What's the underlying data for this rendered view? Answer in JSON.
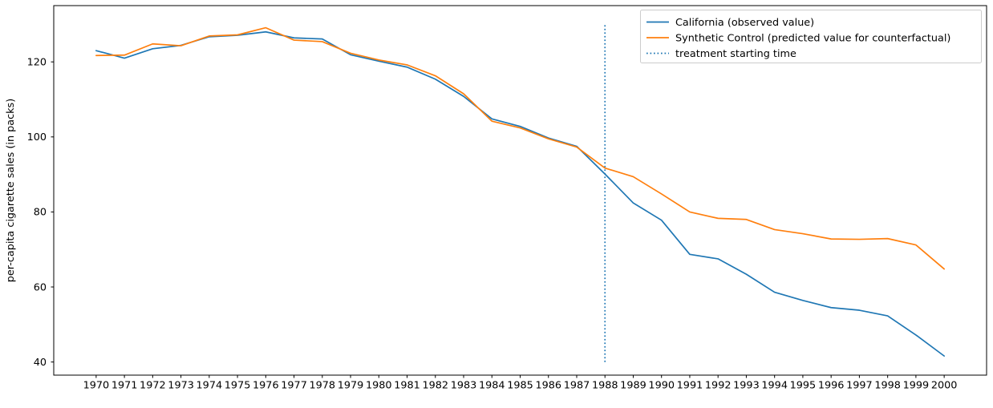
{
  "chart_data": {
    "type": "line",
    "title": "",
    "xlabel": "",
    "ylabel": "per-capita cigarette sales (in packs)",
    "grid": false,
    "legend_position": "upper right",
    "xlim": [
      1968.5,
      2001.5
    ],
    "ylim": [
      36.5,
      135
    ],
    "xticks": [
      1970,
      1971,
      1972,
      1973,
      1974,
      1975,
      1976,
      1977,
      1978,
      1979,
      1980,
      1981,
      1982,
      1983,
      1984,
      1985,
      1986,
      1987,
      1988,
      1989,
      1990,
      1991,
      1992,
      1993,
      1994,
      1995,
      1996,
      1997,
      1998,
      1999,
      2000
    ],
    "yticks": [
      40,
      60,
      80,
      100,
      120
    ],
    "x": [
      1970,
      1971,
      1972,
      1973,
      1974,
      1975,
      1976,
      1977,
      1978,
      1979,
      1980,
      1981,
      1982,
      1983,
      1984,
      1985,
      1986,
      1987,
      1988,
      1989,
      1990,
      1991,
      1992,
      1993,
      1994,
      1995,
      1996,
      1997,
      1998,
      1999,
      2000
    ],
    "series": [
      {
        "name": "California (observed value)",
        "color": "#1f77b4",
        "style": "solid",
        "values": [
          123.0,
          121.0,
          123.5,
          124.4,
          126.7,
          127.1,
          128.0,
          126.4,
          126.1,
          121.9,
          120.2,
          118.6,
          115.4,
          110.8,
          104.8,
          102.8,
          99.7,
          97.5,
          90.1,
          82.4,
          77.8,
          68.7,
          67.5,
          63.4,
          58.6,
          56.4,
          54.5,
          53.8,
          52.3,
          47.2,
          41.6
        ]
      },
      {
        "name": "Synthetic Control (predicted value for counterfactual)",
        "color": "#ff7f0e",
        "style": "solid",
        "values": [
          121.7,
          121.8,
          124.8,
          124.3,
          126.9,
          127.2,
          129.1,
          125.8,
          125.4,
          122.3,
          120.5,
          119.2,
          116.3,
          111.5,
          104.2,
          102.4,
          99.5,
          97.3,
          91.7,
          89.4,
          84.8,
          80.0,
          78.3,
          78.0,
          75.3,
          74.2,
          72.8,
          72.7,
          72.9,
          71.2,
          64.8
        ]
      }
    ],
    "vline": {
      "label": "treatment starting time",
      "x": 1988,
      "y_from": 40,
      "y_to": 130,
      "color": "#1f77b4",
      "style": "dotted"
    },
    "colors": {
      "axis": "#000000",
      "legend_border": "#cccccc",
      "background": "#ffffff"
    }
  }
}
